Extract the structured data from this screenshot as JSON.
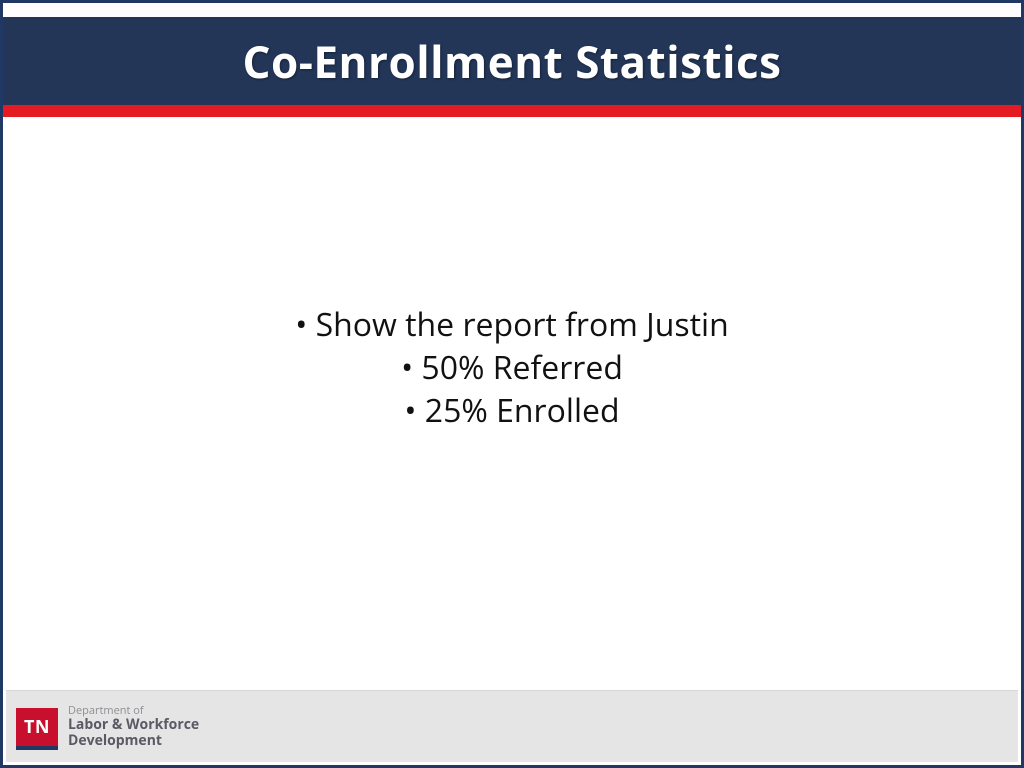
{
  "colors": {
    "border": "#1f3864",
    "header_bg": "#233658",
    "header_text": "#ffffff",
    "accent_bar": "#e51b24",
    "body_text": "#111111",
    "footer_bg": "#e5e5e5",
    "tn_bg": "#c8102e",
    "tn_text": "#ffffff",
    "dept_text_light": "#8f8f94",
    "dept_text_dark": "#5a5a66"
  },
  "header": {
    "title": "Co-Enrollment Statistics",
    "title_fontsize": 44,
    "title_fontweight": 700
  },
  "body": {
    "bullets": [
      "Show the report from Justin",
      "50% Referred",
      "25% Enrolled"
    ],
    "bullet_fontsize": 32
  },
  "footer": {
    "logo_text": "TN",
    "dept_line1": "Department of",
    "dept_line2": "Labor & Workforce",
    "dept_line3": "Development"
  }
}
